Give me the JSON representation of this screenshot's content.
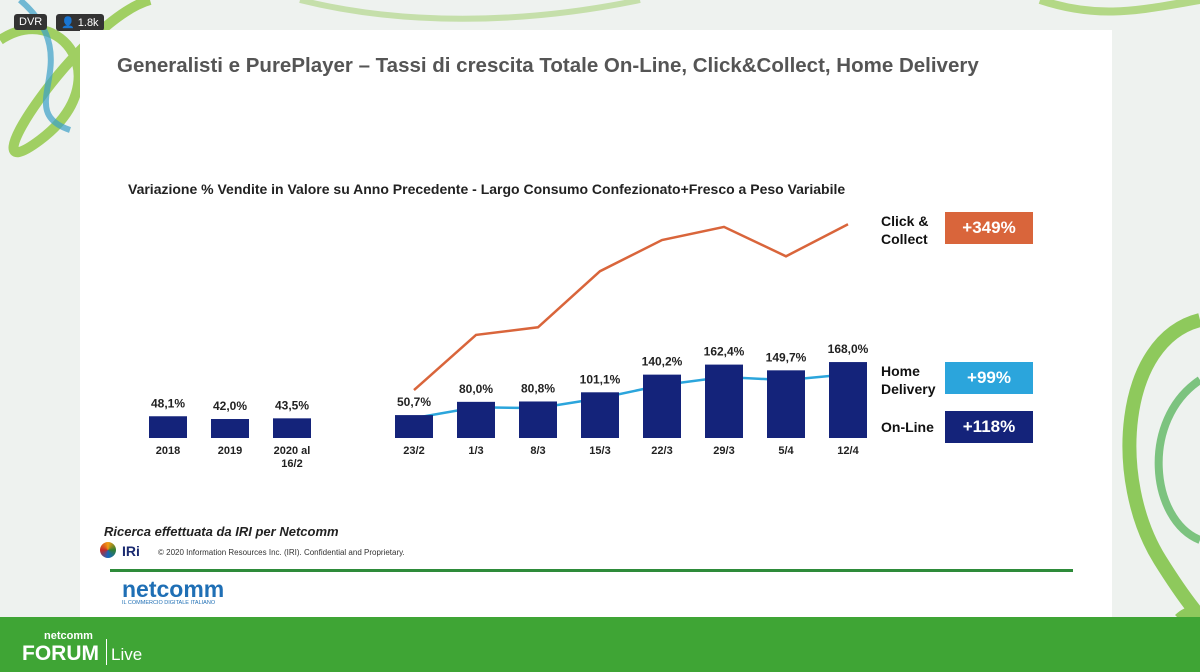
{
  "stream": {
    "badge": "DVR",
    "viewers": "1.8k"
  },
  "slide": {
    "title": "Generalisti e PurePlayer – Tassi di crescita Totale On-Line, Click&Collect, Home Delivery",
    "source": "Ricerca effettuata da IRI per Netcomm",
    "iri_logo": "IRi",
    "copyright": "© 2020 Information Resources Inc. (IRI). Confidential and Proprietary.",
    "logo": "netcomm",
    "logo_tagline": "IL COMMERCIO DIGITALE ITALIANO"
  },
  "chart_data": {
    "type": "bar",
    "title": "Variazione % Vendite in Valore su Anno Precedente - Largo Consumo Confezionato+Fresco a Peso Variabile",
    "categories": [
      "2018",
      "2019",
      "2020 al 16/2",
      "23/2",
      "1/3",
      "8/3",
      "15/3",
      "22/3",
      "29/3",
      "5/4",
      "12/4"
    ],
    "series": [
      {
        "name": "Click & Collect",
        "type": "line",
        "color": "#d9653b",
        "badge": "+349%",
        "values": [
          null,
          null,
          null,
          106,
          228,
          245,
          369,
          438,
          467,
          402,
          473
        ]
      },
      {
        "name": "Home Delivery",
        "type": "line",
        "color": "#2ba5dc",
        "badge": "+99%",
        "values": [
          null,
          null,
          null,
          44,
          68,
          66,
          88,
          117,
          135,
          128,
          141
        ]
      },
      {
        "name": "On-Line",
        "type": "bar",
        "color": "#14237a",
        "badge": "+118%",
        "values": [
          48.1,
          42.0,
          43.5,
          50.7,
          80.0,
          80.8,
          101.1,
          140.2,
          162.4,
          149.7,
          168.0
        ],
        "value_labels": [
          "48,1%",
          "42,0%",
          "43,5%",
          "50,7%",
          "80,0%",
          "80,8%",
          "101,1%",
          "140,2%",
          "162,4%",
          "149,7%",
          "168,0%"
        ]
      }
    ]
  },
  "footer": {
    "brand_top": "netcomm",
    "brand_main": "FORUM",
    "brand_sub": "Live"
  }
}
